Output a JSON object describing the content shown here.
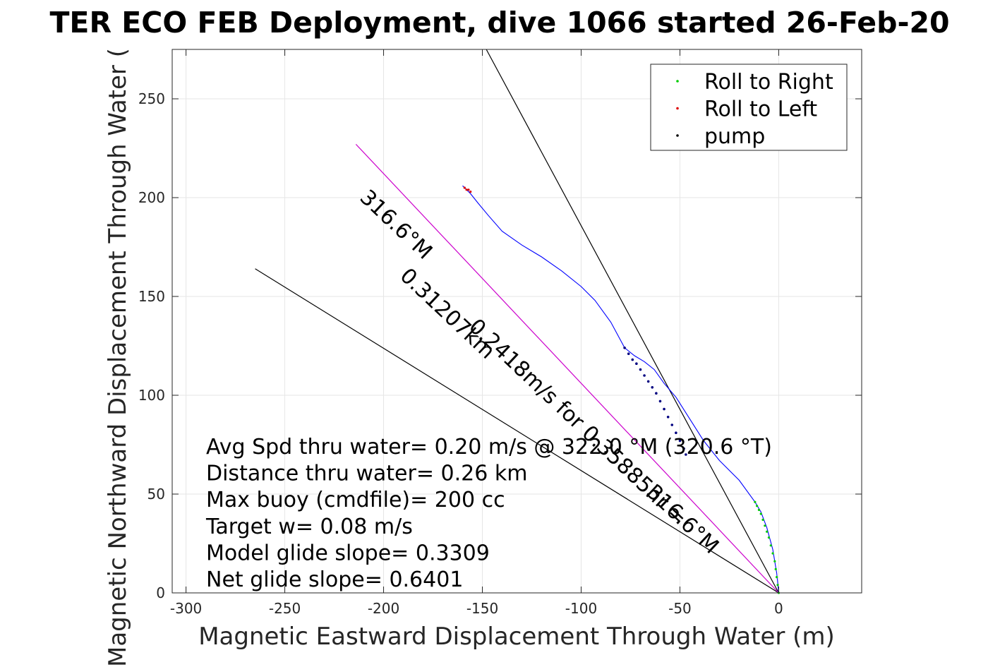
{
  "chart_data": {
    "type": "line",
    "title": "TER ECO FEB Deployment, dive 1066 started 26-Feb-20",
    "xlabel": "Magnetic Eastward Displacement Through Water (m)",
    "ylabel": "Magnetic Northward Displacement Through Water (",
    "xlim": [
      -307,
      42
    ],
    "ylim": [
      0,
      275
    ],
    "xticks": [
      -300,
      -250,
      -200,
      -150,
      -100,
      -50,
      0
    ],
    "yticks": [
      0,
      50,
      100,
      150,
      200,
      250
    ],
    "xtick_labels": [
      "-300",
      "-250",
      "-200",
      "-150",
      "-100",
      "-50",
      "0"
    ],
    "ytick_labels": [
      "0",
      "50",
      "100",
      "150",
      "200",
      "250"
    ],
    "grid": true,
    "legend": {
      "placement": "top-right",
      "entries": [
        {
          "label": "Roll to Right",
          "color": "#00cc00"
        },
        {
          "label": "Roll to Left",
          "color": "#dd0000"
        },
        {
          "label": "pump",
          "color": "#000000"
        }
      ]
    },
    "track": {
      "name": "track",
      "color": "#0000ff",
      "x": [
        0,
        -1,
        -3,
        -6,
        -9,
        -12,
        -20,
        -30,
        -38,
        -45,
        -52,
        -58,
        -63,
        -68,
        -73,
        -78,
        -85,
        -93,
        -100,
        -110,
        -120,
        -130,
        -140,
        -147,
        -152,
        -156,
        -160
      ],
      "y": [
        0,
        10,
        22,
        33,
        41,
        46,
        57,
        67,
        77,
        88,
        99,
        106,
        113,
        117,
        120,
        124,
        137,
        148,
        155,
        163,
        170,
        176,
        183,
        191,
        197,
        202,
        206
      ]
    },
    "roll_right": {
      "color": "#00cc00",
      "x": [
        0,
        -0.5,
        -1,
        -1.5,
        -2,
        -3,
        -4,
        -5,
        -6,
        -7,
        -8,
        -9,
        -10,
        -11,
        -12
      ],
      "y": [
        0,
        4,
        8,
        12,
        16,
        20,
        24,
        28,
        31,
        34,
        37,
        40,
        42,
        44,
        46
      ]
    },
    "roll_left": {
      "color": "#dd0000",
      "x": [
        -159,
        -158,
        -157,
        -156
      ],
      "y": [
        205,
        204,
        204,
        203
      ]
    },
    "pump": {
      "color": "#000080",
      "x": [
        -78,
        -76,
        -74,
        -72,
        -70,
        -68,
        -66,
        -64,
        -62,
        -60,
        -58,
        -56,
        -54,
        -52,
        -50,
        -48,
        -47
      ],
      "y": [
        124,
        121,
        118,
        116,
        113,
        110,
        107,
        104,
        101,
        97,
        93,
        89,
        85,
        81,
        77,
        73,
        70
      ]
    },
    "reference_lines": [
      {
        "color": "#000000",
        "x": [
          0,
          -148
        ],
        "y": [
          0,
          275
        ]
      },
      {
        "color": "#000000",
        "x": [
          0,
          -265
        ],
        "y": [
          0,
          164
        ]
      },
      {
        "color": "#cc00cc",
        "x": [
          0,
          -214
        ],
        "y": [
          0,
          227
        ]
      }
    ],
    "annotations": [
      {
        "text": "316.6°M",
        "x": -194,
        "y": 186,
        "angle": 43.3
      },
      {
        "text": "0.31207km",
        "x": -168,
        "y": 141,
        "angle": 43.3
      },
      {
        "text": "0.2418m/s for 0.35885hr =",
        "x": -102,
        "y": 86,
        "angle": 43.3
      },
      {
        "text": "316.6°M",
        "x": -49,
        "y": 37,
        "angle": 43.3
      }
    ],
    "stats": [
      "Avg Spd thru water=  0.20 m/s @ 322.0 °M (320.6 °T)",
      "Distance thru water=  0.26 km",
      "Max buoy (cmdfile)= 200 cc",
      "Target w= 0.08 m/s",
      "Model glide slope= 0.3309",
      "Net glide slope= 0.6401"
    ]
  }
}
